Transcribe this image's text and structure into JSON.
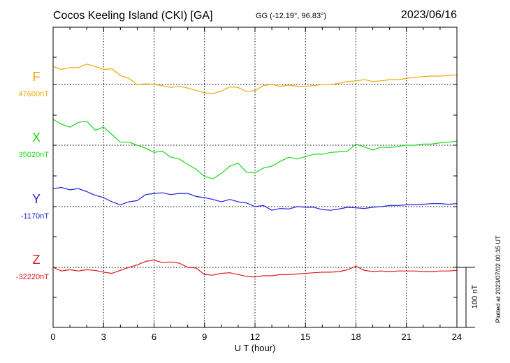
{
  "header": {
    "station": "Cocos Keeling Island (CKI)  [GA]",
    "coords": "GG (-12.19°,  96.83°)",
    "date": "2023/06/16"
  },
  "footer": {
    "plotted": "Plotted at 2023/07/02 00:35 UT"
  },
  "chart_data": {
    "type": "line",
    "xlabel": "U T (hour)",
    "xlim": [
      0,
      24
    ],
    "xticks": [
      "0",
      "3",
      "6",
      "9",
      "12",
      "15",
      "18",
      "21",
      "24"
    ],
    "scale_bar": {
      "label": "100 nT",
      "value": 100
    },
    "grid": true,
    "series": [
      {
        "name": "F",
        "baseline_label": "47600nT",
        "baseline": 47600,
        "color": "#f0a800",
        "x": [
          0,
          0.5,
          1,
          1.5,
          2,
          2.5,
          3,
          3.5,
          4,
          4.5,
          5,
          5.5,
          6,
          6.5,
          7,
          7.5,
          8,
          8.5,
          9,
          9.5,
          10,
          10.5,
          11,
          11.5,
          12,
          12.5,
          13,
          13.5,
          14,
          14.5,
          15,
          15.5,
          16,
          16.5,
          17,
          17.5,
          18,
          18.5,
          19,
          19.5,
          20,
          20.5,
          21,
          21.5,
          22,
          22.5,
          23,
          23.5,
          24
        ],
        "y": [
          47630,
          47625,
          47628,
          47628,
          47634,
          47630,
          47625,
          47626,
          47615,
          47610,
          47600,
          47601,
          47600,
          47598,
          47595,
          47597,
          47594,
          47590,
          47586,
          47585,
          47589,
          47596,
          47595,
          47588,
          47590,
          47598,
          47600,
          47597,
          47599,
          47597,
          47597,
          47598,
          47600,
          47600,
          47602,
          47605,
          47606,
          47608,
          47605,
          47606,
          47608,
          47608,
          47610,
          47612,
          47613,
          47614,
          47614,
          47615,
          47616
        ]
      },
      {
        "name": "X",
        "baseline_label": "35020nT",
        "baseline": 35020,
        "color": "#19d919",
        "x": [
          0,
          0.5,
          1,
          1.5,
          2,
          2.5,
          3,
          3.5,
          4,
          4.5,
          5,
          5.5,
          6,
          6.5,
          7,
          7.5,
          8,
          8.5,
          9,
          9.5,
          10,
          10.5,
          11,
          11.5,
          12,
          12.5,
          13,
          13.5,
          14,
          14.5,
          15,
          15.5,
          16,
          16.5,
          17,
          17.5,
          18,
          18.5,
          19,
          19.5,
          20,
          20.5,
          21,
          21.5,
          22,
          22.5,
          23,
          23.5,
          24
        ],
        "y": [
          35063,
          35055,
          35050,
          35058,
          35060,
          35045,
          35050,
          35038,
          35025,
          35025,
          35020,
          35015,
          35008,
          35010,
          35000,
          34997,
          34988,
          34980,
          34968,
          34964,
          34973,
          34985,
          34990,
          34975,
          34974,
          34982,
          34985,
          34993,
          35000,
          34997,
          35001,
          35005,
          35005,
          35008,
          35009,
          35010,
          35022,
          35017,
          35012,
          35017,
          35016,
          35018,
          35020,
          35020,
          35022,
          35022,
          35024,
          35025,
          35027
        ]
      },
      {
        "name": "Y",
        "baseline_label": "-1170nT",
        "baseline": -1170,
        "color": "#1f1fe0",
        "x": [
          0,
          0.5,
          1,
          1.5,
          2,
          2.5,
          3,
          3.5,
          4,
          4.5,
          5,
          5.5,
          6,
          6.5,
          7,
          7.5,
          8,
          8.5,
          9,
          9.5,
          10,
          10.5,
          11,
          11.5,
          12,
          12.5,
          13,
          13.5,
          14,
          14.5,
          15,
          15.5,
          16,
          16.5,
          17,
          17.5,
          18,
          18.5,
          19,
          19.5,
          20,
          20.5,
          21,
          21.5,
          22,
          22.5,
          23,
          23.5,
          24
        ],
        "y": [
          -1140,
          -1138,
          -1142,
          -1140,
          -1145,
          -1151,
          -1155,
          -1162,
          -1167,
          -1162,
          -1160,
          -1150,
          -1148,
          -1147,
          -1150,
          -1148,
          -1148,
          -1153,
          -1155,
          -1158,
          -1162,
          -1158,
          -1162,
          -1164,
          -1170,
          -1168,
          -1176,
          -1173,
          -1174,
          -1170,
          -1171,
          -1171,
          -1175,
          -1176,
          -1174,
          -1171,
          -1172,
          -1173,
          -1171,
          -1170,
          -1168,
          -1168,
          -1167,
          -1167,
          -1166,
          -1165,
          -1165,
          -1166,
          -1165
        ]
      },
      {
        "name": "Z",
        "baseline_label": "-32220nT",
        "baseline": -32220,
        "color": "#e01818",
        "x": [
          0,
          0.5,
          1,
          1.5,
          2,
          2.5,
          3,
          3.5,
          4,
          4.5,
          5,
          5.5,
          6,
          6.5,
          7,
          7.5,
          8,
          8.5,
          9,
          9.5,
          10,
          10.5,
          11,
          11.5,
          12,
          12.5,
          13,
          13.5,
          14,
          14.5,
          15,
          15.5,
          16,
          16.5,
          17,
          17.5,
          18,
          18.5,
          19,
          19.5,
          20,
          20.5,
          21,
          21.5,
          22,
          22.5,
          23,
          23.5,
          24
        ],
        "y": [
          -32220,
          -32226,
          -32224,
          -32226,
          -32224,
          -32225,
          -32228,
          -32230,
          -32225,
          -32220,
          -32216,
          -32210,
          -32208,
          -32212,
          -32211,
          -32213,
          -32220,
          -32221,
          -32232,
          -32233,
          -32230,
          -32229,
          -32232,
          -32235,
          -32236,
          -32234,
          -32234,
          -32232,
          -32232,
          -32231,
          -32230,
          -32229,
          -32228,
          -32228,
          -32227,
          -32224,
          -32218,
          -32225,
          -32227,
          -32226,
          -32227,
          -32226,
          -32226,
          -32226,
          -32227,
          -32227,
          -32226,
          -32226,
          -32225
        ]
      }
    ]
  }
}
